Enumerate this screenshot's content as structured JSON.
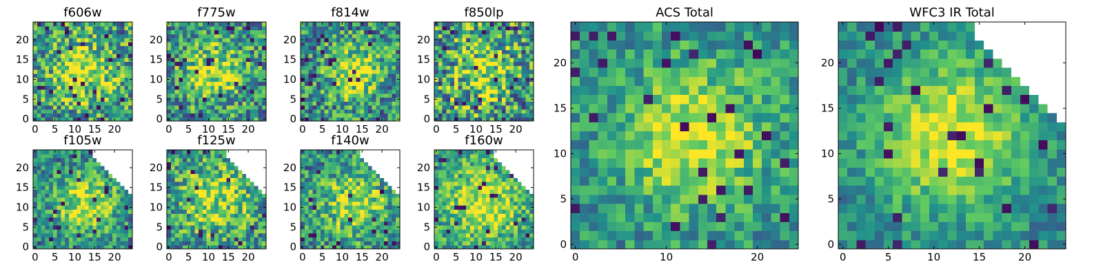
{
  "figure": {
    "description_only_visible": true
  },
  "colormap": {
    "name": "viridis",
    "stops": [
      "#440154",
      "#3b528b",
      "#21918c",
      "#5ec962",
      "#fde725"
    ],
    "missing_color": "#ffffff"
  },
  "chart_data": [
    {
      "type": "heatmap",
      "title": "f606w",
      "grid": 25,
      "xticks": [
        0,
        5,
        10,
        15,
        20
      ],
      "yticks": [
        0,
        5,
        10,
        15,
        20
      ],
      "xlim": [
        0,
        25
      ],
      "ylim": [
        0,
        25
      ],
      "peak": [
        12,
        12
      ],
      "width": 5.0,
      "noise": 0.36,
      "base": 0.55,
      "amp": 0.38,
      "seed": 11,
      "mask": false
    },
    {
      "type": "heatmap",
      "title": "f775w",
      "grid": 25,
      "xticks": [
        0,
        5,
        10,
        15,
        20
      ],
      "yticks": [
        0,
        5,
        10,
        15,
        20
      ],
      "xlim": [
        0,
        25
      ],
      "ylim": [
        0,
        25
      ],
      "peak": [
        11,
        12
      ],
      "width": 5.0,
      "noise": 0.34,
      "base": 0.52,
      "amp": 0.4,
      "seed": 23,
      "mask": false
    },
    {
      "type": "heatmap",
      "title": "f814w",
      "grid": 25,
      "xticks": [
        0,
        5,
        10,
        15,
        20
      ],
      "yticks": [
        0,
        5,
        10,
        15,
        20
      ],
      "xlim": [
        0,
        25
      ],
      "ylim": [
        0,
        25
      ],
      "peak": [
        13,
        12
      ],
      "width": 4.5,
      "noise": 0.34,
      "base": 0.5,
      "amp": 0.45,
      "seed": 37,
      "mask": false
    },
    {
      "type": "heatmap",
      "title": "f850lp",
      "grid": 25,
      "xticks": [
        0,
        5,
        10,
        15,
        20
      ],
      "yticks": [
        0,
        5,
        10,
        15,
        20
      ],
      "xlim": [
        0,
        25
      ],
      "ylim": [
        0,
        25
      ],
      "peak": [
        12,
        12
      ],
      "width": 5.0,
      "noise": 0.42,
      "base": 0.55,
      "amp": 0.35,
      "seed": 53,
      "mask": false
    },
    {
      "type": "heatmap",
      "title": "ACS Total",
      "grid": 25,
      "xticks": [
        0,
        10,
        20
      ],
      "yticks": [
        0,
        5,
        10,
        15,
        20
      ],
      "xlim": [
        0,
        25
      ],
      "ylim": [
        0,
        25
      ],
      "peak": [
        13,
        12
      ],
      "width": 5.5,
      "noise": 0.22,
      "base": 0.5,
      "amp": 0.45,
      "seed": 71,
      "mask": false
    },
    {
      "type": "heatmap",
      "title": "f105w",
      "grid": 25,
      "xticks": [
        0,
        5,
        10,
        15,
        20
      ],
      "yticks": [
        0,
        5,
        10,
        15,
        20
      ],
      "xlim": [
        0,
        25
      ],
      "ylim": [
        0,
        25
      ],
      "peak": [
        13,
        11
      ],
      "width": 6.0,
      "noise": 0.28,
      "base": 0.45,
      "amp": 0.45,
      "seed": 89,
      "mask": true
    },
    {
      "type": "heatmap",
      "title": "f125w",
      "grid": 25,
      "xticks": [
        0,
        5,
        10,
        15,
        20
      ],
      "yticks": [
        0,
        5,
        10,
        15,
        20
      ],
      "xlim": [
        0,
        25
      ],
      "ylim": [
        0,
        25
      ],
      "peak": [
        12,
        12
      ],
      "width": 6.5,
      "noise": 0.32,
      "base": 0.5,
      "amp": 0.35,
      "seed": 97,
      "mask": true
    },
    {
      "type": "heatmap",
      "title": "f140w",
      "grid": 25,
      "xticks": [
        0,
        5,
        10,
        15,
        20
      ],
      "yticks": [
        0,
        5,
        10,
        15,
        20
      ],
      "xlim": [
        0,
        25
      ],
      "ylim": [
        0,
        25
      ],
      "peak": [
        13,
        11
      ],
      "width": 6.0,
      "noise": 0.3,
      "base": 0.48,
      "amp": 0.4,
      "seed": 113,
      "mask": true
    },
    {
      "type": "heatmap",
      "title": "f160w",
      "grid": 25,
      "xticks": [
        0,
        5,
        10,
        15,
        20
      ],
      "yticks": [
        0,
        5,
        10,
        15,
        20
      ],
      "xlim": [
        0,
        25
      ],
      "ylim": [
        0,
        25
      ],
      "peak": [
        12,
        11
      ],
      "width": 6.5,
      "noise": 0.26,
      "base": 0.55,
      "amp": 0.38,
      "seed": 127,
      "mask": true
    },
    {
      "type": "heatmap",
      "title": "WFC3 IR Total",
      "grid": 25,
      "xticks": [
        0,
        5,
        10,
        15,
        20
      ],
      "yticks": [
        0,
        5,
        10,
        15,
        20
      ],
      "xlim": [
        0,
        25
      ],
      "ylim": [
        0,
        25
      ],
      "peak": [
        12,
        12
      ],
      "width": 6.0,
      "noise": 0.18,
      "base": 0.45,
      "amp": 0.5,
      "seed": 149,
      "mask": true
    }
  ]
}
